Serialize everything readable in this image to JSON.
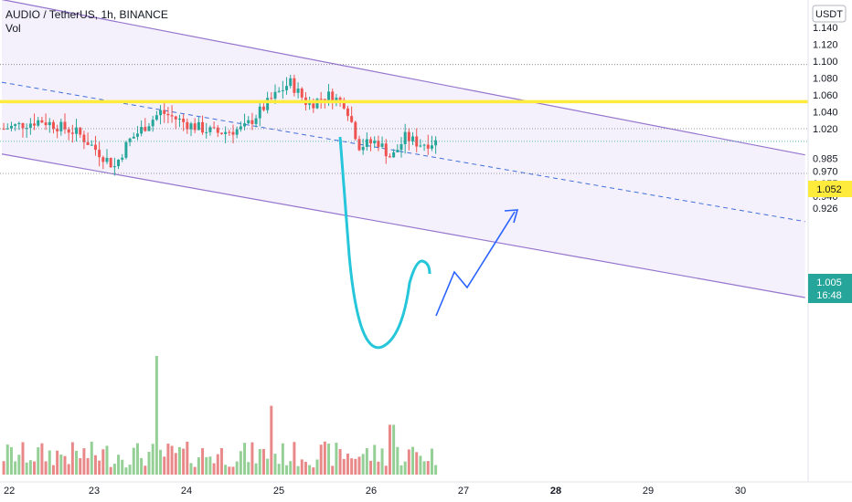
{
  "header": {
    "symbol_line": "AUDIO / TetherUS, 1h, BINANCE",
    "volume_label": "Vol"
  },
  "price_axis": {
    "currency": "USDT",
    "ticks": [
      "1.140",
      "1.120",
      "1.100",
      "1.080",
      "1.060",
      "1.040",
      "1.020",
      "0.985",
      "0.970",
      "0.955",
      "0.940",
      "0.926"
    ],
    "yellow_level": "1.052",
    "current_price": "1.005",
    "countdown": "16:48"
  },
  "time_axis": {
    "ticks": [
      "22",
      "23",
      "24",
      "25",
      "26",
      "27",
      "28",
      "29",
      "30"
    ],
    "bold_ticks": [
      "28"
    ]
  },
  "colors": {
    "up": "#26a69a",
    "down": "#ef5350",
    "vol_up": "#81c784",
    "vol_down": "#e57373",
    "channel": "#9575cd",
    "channel_fill": "#f3eefc",
    "level": "#ffeb3b",
    "current": "#26a69a",
    "projection": "#2962ff",
    "ellipse": "#26c6da"
  },
  "chart_data": {
    "type": "candlestick",
    "x_unit": "day of month (hourly bars)",
    "price_range": [
      0.9,
      1.145
    ],
    "horizontal_levels": [
      1.096,
      1.052,
      1.02,
      0.967,
      1.005
    ],
    "channel": {
      "upper_line": [
        [
          22.0,
          1.173
        ],
        [
          30.7,
          0.989
        ]
      ],
      "middle_dashed_line": [
        [
          22.0,
          1.075
        ],
        [
          30.7,
          0.91
        ]
      ],
      "lower_line": [
        [
          22.0,
          0.99
        ],
        [
          30.7,
          0.82
        ]
      ]
    },
    "candles_summary": {
      "start_day": 22.0,
      "bars": 114,
      "open_first": 1.02,
      "high_max": 1.096,
      "low_min": 0.967,
      "close_last": 1.005
    },
    "projection_path": [
      [
        26.7,
        0.99
      ],
      [
        26.85,
        1.01
      ],
      [
        27.0,
        1.003
      ],
      [
        27.55,
        1.043
      ]
    ],
    "volume_spikes": [
      [
        23.65,
        1.0
      ],
      [
        24.9,
        0.58
      ],
      [
        26.2,
        0.42
      ]
    ]
  }
}
